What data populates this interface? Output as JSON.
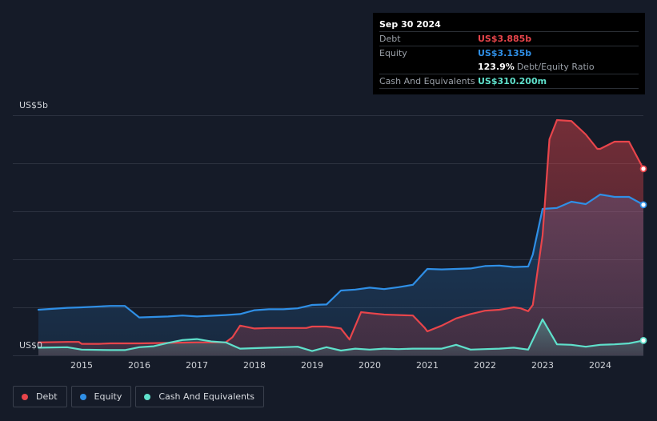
{
  "tooltip": {
    "date": "Sep 30 2024",
    "debt_label": "Debt",
    "debt_value": "US$3.885b",
    "equity_label": "Equity",
    "equity_value": "US$3.135b",
    "ratio_value": "123.9%",
    "ratio_label": "Debt/Equity Ratio",
    "cash_label": "Cash And Equivalents",
    "cash_value": "US$310.200m"
  },
  "legend": {
    "debt": "Debt",
    "equity": "Equity",
    "cash": "Cash And Equivalents"
  },
  "colors": {
    "debt": "#e8454b",
    "equity": "#2f8fe6",
    "cash": "#5fe0cb",
    "background": "#151b28",
    "grid": "#2c3240"
  },
  "chart_data": {
    "type": "area",
    "title": "",
    "ylabel": "",
    "xlabel": "",
    "y_top_label": "US$5b",
    "y_bottom_label": "US$0",
    "ylim": [
      0,
      5
    ],
    "xlim": [
      2014.25,
      2024.75
    ],
    "x_ticks": [
      2015,
      2016,
      2017,
      2018,
      2019,
      2020,
      2021,
      2022,
      2023,
      2024
    ],
    "x_tick_labels": [
      "2015",
      "2016",
      "2017",
      "2018",
      "2019",
      "2020",
      "2021",
      "2022",
      "2023",
      "2024"
    ],
    "series": [
      {
        "name": "Debt",
        "key": "debt",
        "points": [
          [
            2014.25,
            0.27
          ],
          [
            2014.75,
            0.28
          ],
          [
            2014.95,
            0.28
          ],
          [
            2015.0,
            0.24
          ],
          [
            2015.3,
            0.24
          ],
          [
            2015.5,
            0.25
          ],
          [
            2016.0,
            0.25
          ],
          [
            2016.5,
            0.26
          ],
          [
            2017.0,
            0.27
          ],
          [
            2017.5,
            0.27
          ],
          [
            2017.62,
            0.38
          ],
          [
            2017.75,
            0.62
          ],
          [
            2018.0,
            0.56
          ],
          [
            2018.25,
            0.57
          ],
          [
            2018.9,
            0.57
          ],
          [
            2019.0,
            0.6
          ],
          [
            2019.25,
            0.6
          ],
          [
            2019.5,
            0.56
          ],
          [
            2019.65,
            0.33
          ],
          [
            2019.85,
            0.9
          ],
          [
            2020.0,
            0.88
          ],
          [
            2020.25,
            0.85
          ],
          [
            2020.5,
            0.84
          ],
          [
            2020.75,
            0.83
          ],
          [
            2020.95,
            0.58
          ],
          [
            2021.0,
            0.5
          ],
          [
            2021.25,
            0.62
          ],
          [
            2021.5,
            0.77
          ],
          [
            2021.75,
            0.86
          ],
          [
            2022.0,
            0.93
          ],
          [
            2022.25,
            0.95
          ],
          [
            2022.5,
            1.0
          ],
          [
            2022.62,
            0.98
          ],
          [
            2022.75,
            0.92
          ],
          [
            2022.83,
            1.05
          ],
          [
            2023.0,
            2.5
          ],
          [
            2023.12,
            4.5
          ],
          [
            2023.25,
            4.9
          ],
          [
            2023.5,
            4.88
          ],
          [
            2023.75,
            4.6
          ],
          [
            2023.95,
            4.3
          ],
          [
            2024.0,
            4.3
          ],
          [
            2024.25,
            4.45
          ],
          [
            2024.5,
            4.45
          ],
          [
            2024.75,
            3.885
          ]
        ]
      },
      {
        "name": "Equity",
        "key": "equity",
        "points": [
          [
            2014.25,
            0.95
          ],
          [
            2014.75,
            0.99
          ],
          [
            2015.0,
            1.0
          ],
          [
            2015.5,
            1.03
          ],
          [
            2015.75,
            1.03
          ],
          [
            2016.0,
            0.79
          ],
          [
            2016.5,
            0.81
          ],
          [
            2016.75,
            0.83
          ],
          [
            2017.0,
            0.81
          ],
          [
            2017.5,
            0.84
          ],
          [
            2017.75,
            0.86
          ],
          [
            2018.0,
            0.94
          ],
          [
            2018.25,
            0.96
          ],
          [
            2018.5,
            0.96
          ],
          [
            2018.75,
            0.98
          ],
          [
            2019.0,
            1.05
          ],
          [
            2019.25,
            1.06
          ],
          [
            2019.5,
            1.35
          ],
          [
            2019.75,
            1.37
          ],
          [
            2020.0,
            1.41
          ],
          [
            2020.25,
            1.38
          ],
          [
            2020.5,
            1.42
          ],
          [
            2020.75,
            1.47
          ],
          [
            2021.0,
            1.8
          ],
          [
            2021.25,
            1.79
          ],
          [
            2021.5,
            1.8
          ],
          [
            2021.75,
            1.81
          ],
          [
            2022.0,
            1.86
          ],
          [
            2022.25,
            1.87
          ],
          [
            2022.5,
            1.84
          ],
          [
            2022.75,
            1.85
          ],
          [
            2022.83,
            2.1
          ],
          [
            2023.0,
            3.05
          ],
          [
            2023.25,
            3.07
          ],
          [
            2023.5,
            3.2
          ],
          [
            2023.75,
            3.15
          ],
          [
            2024.0,
            3.35
          ],
          [
            2024.25,
            3.3
          ],
          [
            2024.5,
            3.3
          ],
          [
            2024.75,
            3.135
          ]
        ]
      },
      {
        "name": "Cash And Equivalents",
        "key": "cash",
        "points": [
          [
            2014.25,
            0.16
          ],
          [
            2014.75,
            0.17
          ],
          [
            2015.0,
            0.12
          ],
          [
            2015.5,
            0.11
          ],
          [
            2015.75,
            0.11
          ],
          [
            2016.0,
            0.17
          ],
          [
            2016.25,
            0.19
          ],
          [
            2016.5,
            0.26
          ],
          [
            2016.75,
            0.32
          ],
          [
            2017.0,
            0.34
          ],
          [
            2017.25,
            0.29
          ],
          [
            2017.5,
            0.27
          ],
          [
            2017.75,
            0.14
          ],
          [
            2018.0,
            0.15
          ],
          [
            2018.25,
            0.16
          ],
          [
            2018.5,
            0.17
          ],
          [
            2018.75,
            0.18
          ],
          [
            2019.0,
            0.09
          ],
          [
            2019.25,
            0.17
          ],
          [
            2019.5,
            0.1
          ],
          [
            2019.75,
            0.14
          ],
          [
            2020.0,
            0.12
          ],
          [
            2020.25,
            0.14
          ],
          [
            2020.5,
            0.13
          ],
          [
            2020.75,
            0.14
          ],
          [
            2021.0,
            0.14
          ],
          [
            2021.25,
            0.14
          ],
          [
            2021.5,
            0.22
          ],
          [
            2021.75,
            0.12
          ],
          [
            2022.0,
            0.13
          ],
          [
            2022.25,
            0.14
          ],
          [
            2022.5,
            0.16
          ],
          [
            2022.75,
            0.12
          ],
          [
            2023.0,
            0.75
          ],
          [
            2023.25,
            0.23
          ],
          [
            2023.5,
            0.22
          ],
          [
            2023.75,
            0.18
          ],
          [
            2024.0,
            0.22
          ],
          [
            2024.25,
            0.23
          ],
          [
            2024.5,
            0.25
          ],
          [
            2024.75,
            0.3102
          ]
        ]
      }
    ]
  }
}
